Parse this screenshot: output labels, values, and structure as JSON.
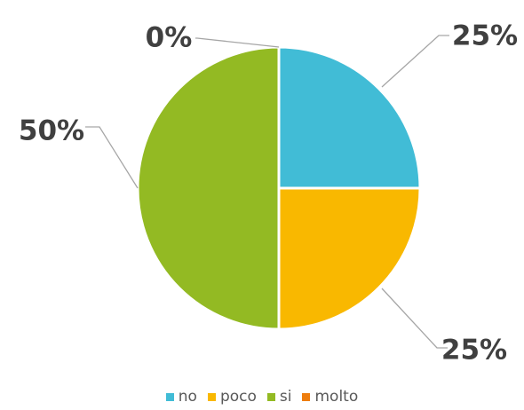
{
  "chart_data": {
    "type": "pie",
    "categories": [
      "no",
      "poco",
      "si",
      "molto"
    ],
    "values": [
      25,
      25,
      50,
      0
    ],
    "labels": [
      "25%",
      "25%",
      "50%",
      "0%"
    ],
    "colors": [
      "#41BCD6",
      "#F9B800",
      "#93BA23",
      "#EE7D0D"
    ],
    "legend_position": "bottom",
    "start_angle_deg": 0,
    "direction": "clockwise"
  }
}
